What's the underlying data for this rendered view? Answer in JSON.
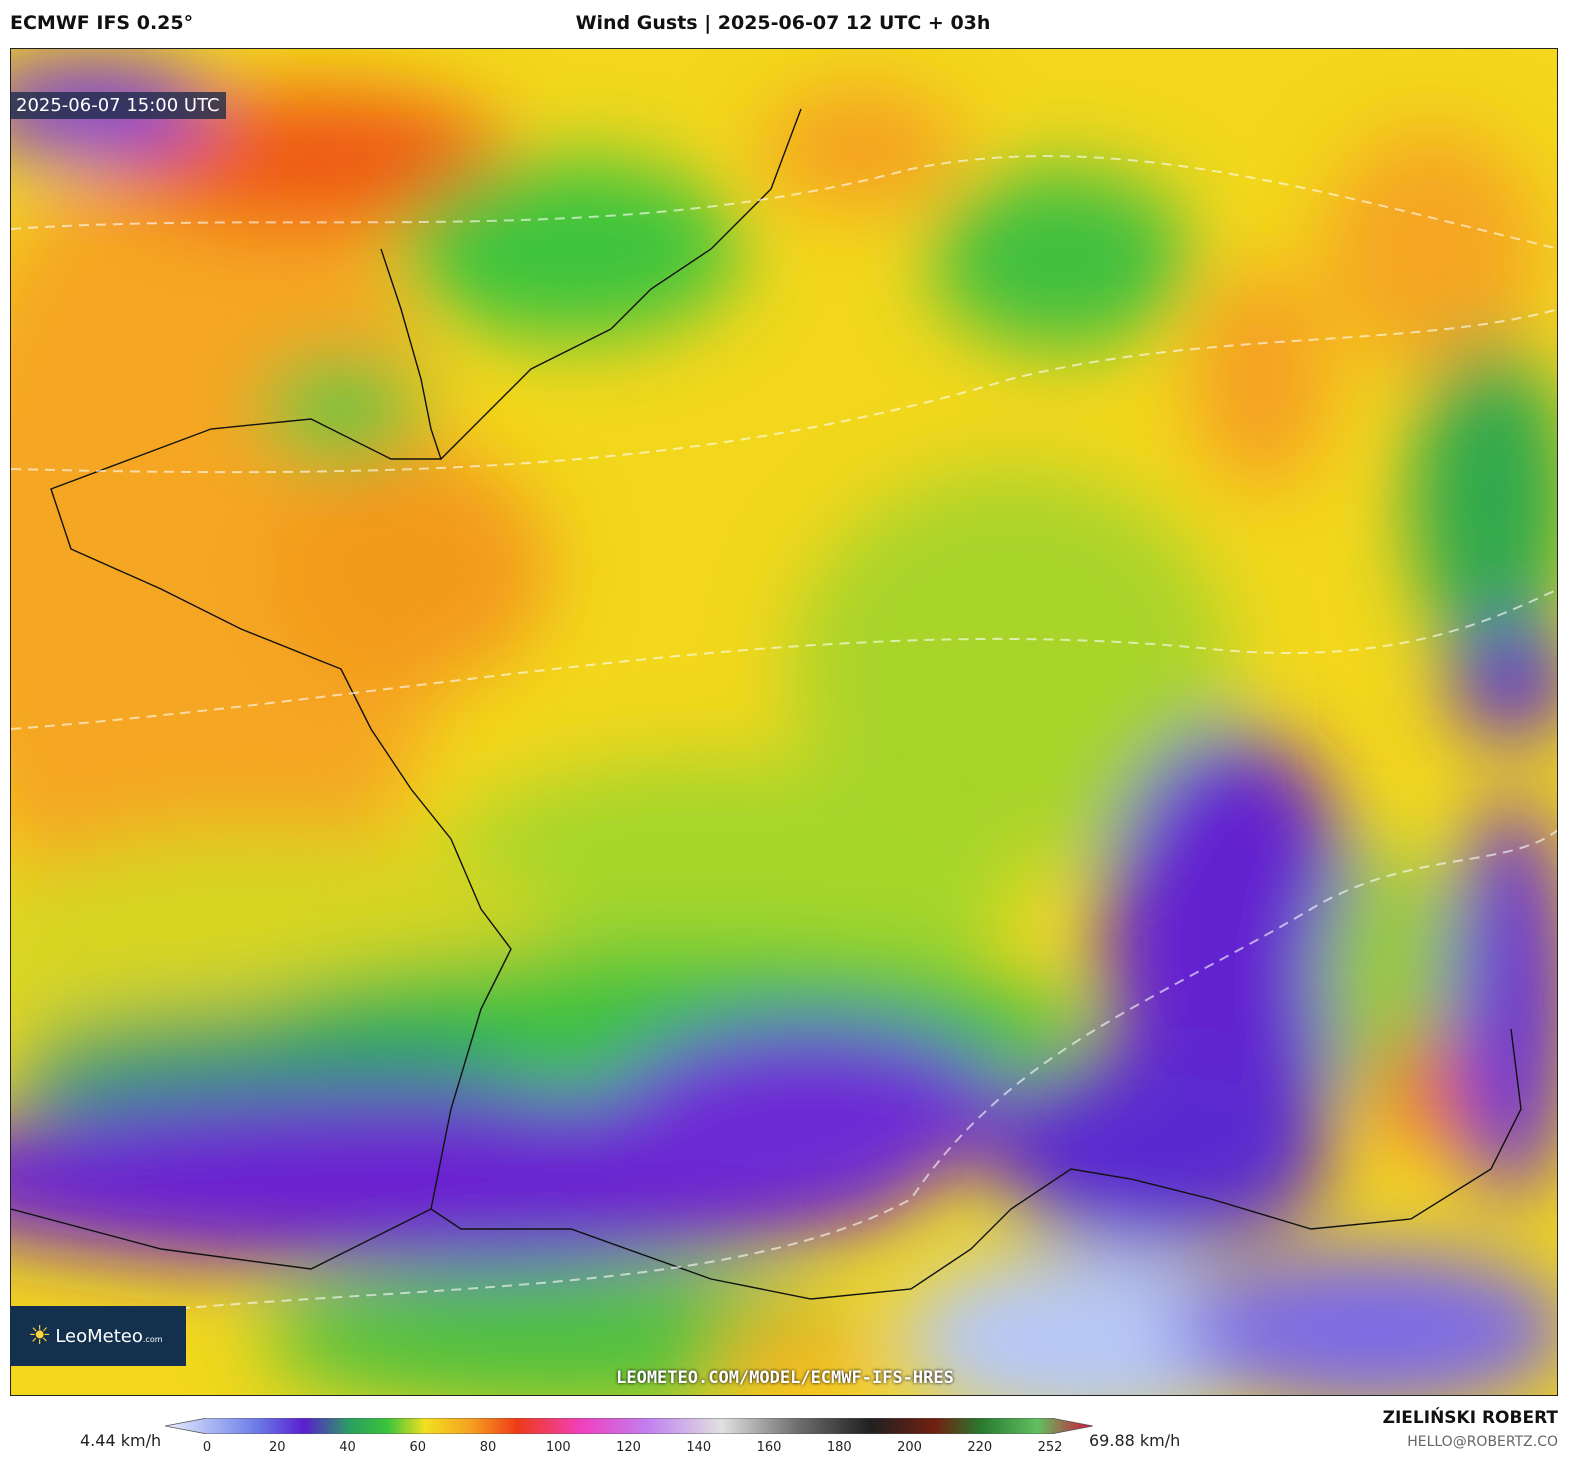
{
  "header": {
    "model": "ECMWF IFS 0.25°",
    "title": "Wind Gusts | 2025-06-07 12 UTC + 03h"
  },
  "map": {
    "valid_time": "2025-06-07 15:00 UTC",
    "source_url": "LEOMETEO.COM/MODEL/ECMWF-IFS-HRES"
  },
  "logo": {
    "name": "LeoMeteo",
    "suffix": ".com"
  },
  "legend": {
    "min_label": "4.44 km/h",
    "max_label": "69.88 km/h",
    "ticks": [
      0,
      20,
      40,
      60,
      80,
      100,
      120,
      140,
      160,
      180,
      200,
      220,
      252
    ]
  },
  "footer": {
    "author": "ZIELIŃSKI ROBERT",
    "email": "HELLO@ROBERTZ.CO"
  }
}
